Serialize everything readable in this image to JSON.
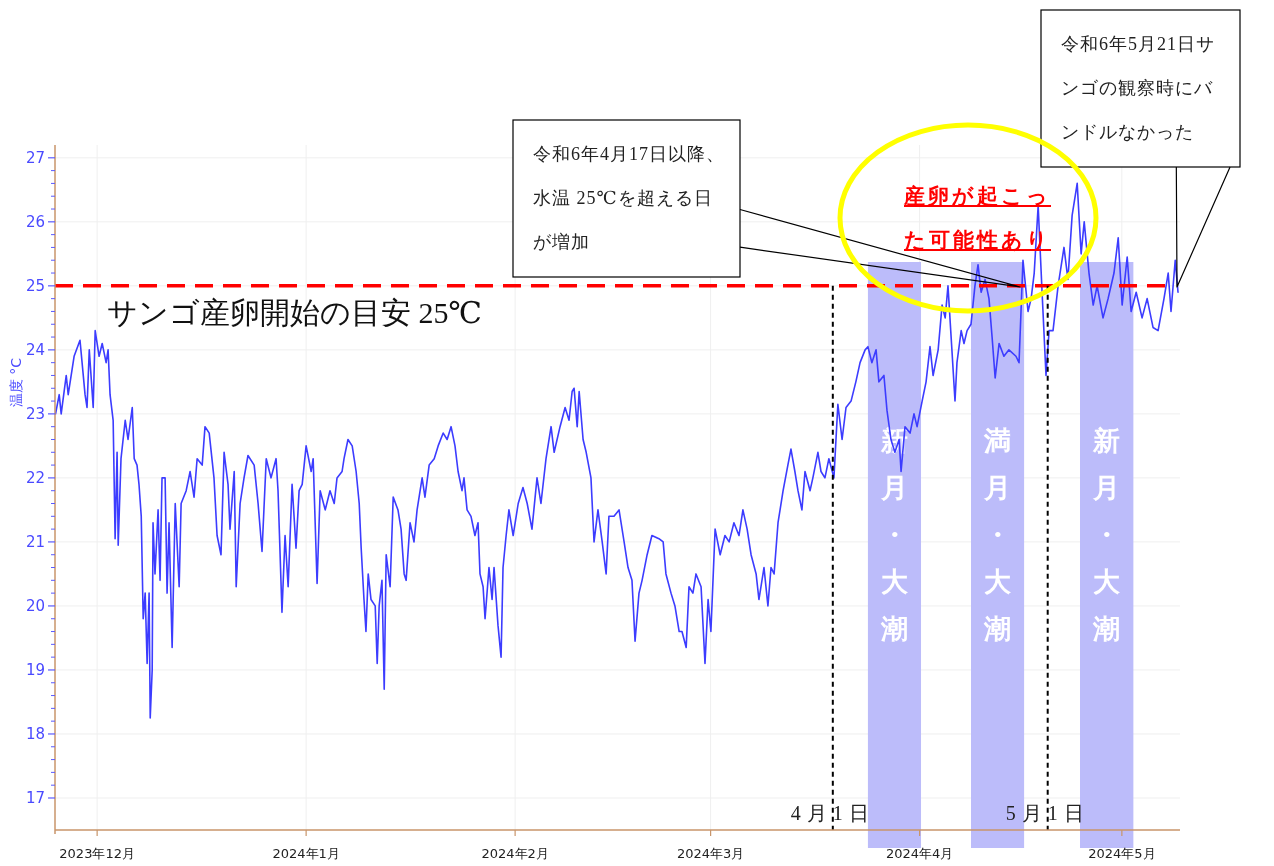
{
  "chart_data": {
    "type": "line",
    "ylabel": "温度 °C",
    "grid": true,
    "xlim": [
      "2023-11-24T18:00",
      "2024-05-09T15:00"
    ],
    "ylim": [
      16.5,
      27.2
    ],
    "xticks": [
      {
        "value": "2023-12-01",
        "label": "2023年12月"
      },
      {
        "value": "2024-01-01",
        "label": "2024年1月"
      },
      {
        "value": "2024-02-01",
        "label": "2024年2月"
      },
      {
        "value": "2024-03-01",
        "label": "2024年3月"
      },
      {
        "value": "2024-04-01",
        "label": "2024年4月"
      },
      {
        "value": "2024-05-01",
        "label": "2024年5月"
      }
    ],
    "yticks": [
      17,
      18,
      19,
      20,
      21,
      22,
      23,
      24,
      25,
      26,
      27
    ],
    "x": [
      "2023-11-24T20:00",
      "2023-11-25T09:00",
      "2023-11-25T16:00",
      "2023-11-26T10:00",
      "2023-11-26T17:00",
      "2023-11-27T14:00",
      "2023-11-28T11:00",
      "2023-11-29T05:00",
      "2023-11-29T12:00",
      "2023-11-29T20:00",
      "2023-11-30T10:00",
      "2023-11-30T17:00",
      "2023-12-01T07:00",
      "2023-12-01T18:00",
      "2023-12-02T08:00",
      "2023-12-02T15:00",
      "2023-12-02T22:00",
      "2023-12-03T09:00",
      "2023-12-03T16:00",
      "2023-12-03T23:00",
      "2023-12-04T03:00",
      "2023-12-04T13:00",
      "2023-12-05T04:00",
      "2023-12-05T14:00",
      "2023-12-06T05:00",
      "2023-12-06T12:00",
      "2023-12-06T22:00",
      "2023-12-07T05:00",
      "2023-12-07T13:00",
      "2023-12-07T20:00",
      "2023-12-08T03:00",
      "2023-12-08T10:00",
      "2023-12-08T17:00",
      "2023-12-08T21:00",
      "2023-12-09T04:00",
      "2023-12-09T07:00",
      "2023-12-09T14:00",
      "2023-12-10T01:00",
      "2023-12-10T08:00",
      "2023-12-10T15:00",
      "2023-12-11T02:00",
      "2023-12-11T09:00",
      "2023-12-11T16:00",
      "2023-12-12T03:00",
      "2023-12-12T14:00",
      "2023-12-13T04:00",
      "2023-12-13T11:00",
      "2023-12-14T05:00",
      "2023-12-14T19:00",
      "2023-12-15T09:00",
      "2023-12-15T20:00",
      "2023-12-16T14:00",
      "2023-12-17T00:00",
      "2023-12-17T15:00",
      "2023-12-18T08:00",
      "2023-12-18T19:00",
      "2023-12-19T09:00",
      "2023-12-19T20:00",
      "2023-12-20T10:00",
      "2023-12-20T17:00",
      "2023-12-21T08:00",
      "2023-12-21T15:00",
      "2023-12-22T05:00",
      "2023-12-22T19:00",
      "2023-12-23T09:00",
      "2023-12-24T07:00",
      "2023-12-24T21:00",
      "2023-12-25T11:00",
      "2023-12-26T02:00",
      "2023-12-26T19:00",
      "2023-12-27T13:00",
      "2023-12-27T20:00",
      "2023-12-28T10:00",
      "2023-12-28T21:00",
      "2023-12-29T08:00",
      "2023-12-29T22:00",
      "2023-12-30T12:00",
      "2023-12-30T23:00",
      "2023-12-31T10:00",
      "2024-01-01T00:00",
      "2024-01-01T18:00",
      "2024-01-02T01:00",
      "2024-01-02T15:00",
      "2024-01-03T02:00",
      "2024-01-03T20:00",
      "2024-01-04T13:00",
      "2024-01-05T04:00",
      "2024-01-05T14:00",
      "2024-01-06T08:00",
      "2024-01-06T15:00",
      "2024-01-07T05:00",
      "2024-01-07T20:00",
      "2024-01-08T10:00",
      "2024-01-08T21:00",
      "2024-01-09T04:00",
      "2024-01-09T14:00",
      "2024-01-09T21:00",
      "2024-01-10T05:00",
      "2024-01-10T15:00",
      "2024-01-11T06:00",
      "2024-01-11T13:00",
      "2024-01-11T20:00",
      "2024-01-12T06:00",
      "2024-01-12T14:00",
      "2024-01-12T21:00",
      "2024-01-13T11:00",
      "2024-01-13T22:00",
      "2024-01-14T15:00",
      "2024-01-15T02:00",
      "2024-01-15T13:00",
      "2024-01-15T20:00",
      "2024-01-16T10:00",
      "2024-01-17T00:00",
      "2024-01-17T11:00",
      "2024-01-18T05:00",
      "2024-01-18T15:00",
      "2024-01-19T06:00",
      "2024-01-20T00:00",
      "2024-01-20T14:00",
      "2024-01-21T08:00",
      "2024-01-21T22:00",
      "2024-01-22T12:00",
      "2024-01-23T02:00",
      "2024-01-23T13:00",
      "2024-01-24T03:00",
      "2024-01-24T10:00",
      "2024-01-24T21:00",
      "2024-01-25T11:00",
      "2024-01-26T01:00",
      "2024-01-26T12:00",
      "2024-01-26T19:00",
      "2024-01-27T06:00",
      "2024-01-27T13:00",
      "2024-01-28T03:00",
      "2024-01-28T14:00",
      "2024-01-28T21:00",
      "2024-01-29T11:00",
      "2024-01-29T22:00",
      "2024-01-30T05:00",
      "2024-01-30T16:00",
      "2024-01-31T02:00",
      "2024-01-31T17:00",
      "2024-02-01T11:00",
      "2024-02-02T04:00",
      "2024-02-02T19:00",
      "2024-02-03T12:00",
      "2024-02-04T06:00",
      "2024-02-04T20:00",
      "2024-02-05T14:00",
      "2024-02-06T08:00",
      "2024-02-06T19:00",
      "2024-02-07T16:00",
      "2024-02-08T10:00",
      "2024-02-09T00:00",
      "2024-02-09T11:00",
      "2024-02-09T18:00",
      "2024-02-10T05:00",
      "2024-02-10T12:00",
      "2024-02-11T02:00",
      "2024-02-11T13:00",
      "2024-02-12T06:00",
      "2024-02-12T17:00",
      "2024-02-13T07:00",
      "2024-02-13T22:00",
      "2024-02-14T12:00",
      "2024-02-14T22:00",
      "2024-02-15T16:00",
      "2024-02-16T10:00",
      "2024-02-17T04:00",
      "2024-02-17T18:00",
      "2024-02-18T08:00",
      "2024-02-18T19:00",
      "2024-02-19T09:00",
      "2024-02-19T20:00",
      "2024-02-20T14:00",
      "2024-02-21T07:00",
      "2024-02-22T08:00",
      "2024-02-22T23:00",
      "2024-02-23T09:00",
      "2024-02-24T03:00",
      "2024-02-24T17:00",
      "2024-02-25T08:00",
      "2024-02-25T18:00",
      "2024-02-26T09:00",
      "2024-02-26T19:00",
      "2024-02-27T09:00",
      "2024-02-27T20:00",
      "2024-02-28T14:00",
      "2024-02-29T04:00",
      "2024-02-29T15:00",
      "2024-03-01T01:00",
      "2024-03-01T16:00",
      "2024-03-02T10:00",
      "2024-03-03T03:00",
      "2024-03-03T18:00",
      "2024-03-04T11:00",
      "2024-03-05T05:00",
      "2024-03-05T19:00",
      "2024-03-06T10:00",
      "2024-03-07T00:00",
      "2024-03-07T18:00",
      "2024-03-08T04:00",
      "2024-03-08T22:00",
      "2024-03-09T12:00",
      "2024-03-09T23:00",
      "2024-03-10T10:00",
      "2024-03-11T00:00",
      "2024-03-11T18:00",
      "2024-03-12T11:00",
      "2024-03-12T22:00",
      "2024-03-13T12:00",
      "2024-03-13T23:00",
      "2024-03-14T13:00",
      "2024-03-15T00:00",
      "2024-03-15T18:00",
      "2024-03-16T04:00",
      "2024-03-16T22:00",
      "2024-03-17T09:00",
      "2024-03-17T23:00",
      "2024-03-18T13:00",
      "2024-03-19T07:00",
      "2024-03-19T21:00",
      "2024-03-20T12:00",
      "2024-03-21T02:00",
      "2024-03-21T20:00",
      "2024-03-22T13:00",
      "2024-03-23T04:00",
      "2024-03-23T22:00",
      "2024-03-24T08:00",
      "2024-03-24T22:00",
      "2024-03-25T13:00",
      "2024-03-25T23:00",
      "2024-03-26T17:00",
      "2024-03-27T04:00",
      "2024-03-27T18:00",
      "2024-03-28T08:00",
      "2024-03-28T23:00",
      "2024-03-29T06:00",
      "2024-03-29T20:00",
      "2024-03-30T14:00",
      "2024-03-31T04:00",
      "2024-03-31T15:00",
      "2024-04-01T09:00",
      "2024-04-01T23:00",
      "2024-04-02T13:00",
      "2024-04-03T00:00",
      "2024-04-03T18:00",
      "2024-04-04T08:00",
      "2024-04-04T19:00",
      "2024-04-05T05:00",
      "2024-04-05T19:00",
      "2024-04-06T06:00",
      "2024-04-06T13:00",
      "2024-04-07T04:00",
      "2024-04-07T14:00",
      "2024-04-08T01:00",
      "2024-04-08T15:00",
      "2024-04-09T05:00",
      "2024-04-09T16:00",
      "2024-04-10T03:00",
      "2024-04-10T17:00",
      "2024-04-11T07:00",
      "2024-04-11T18:00",
      "2024-04-12T05:00",
      "2024-04-12T19:00",
      "2024-04-13T12:00",
      "2024-04-14T06:00",
      "2024-04-15T07:00",
      "2024-04-15T18:00",
      "2024-04-16T08:00",
      "2024-04-17T02:00",
      "2024-04-17T13:00",
      "2024-04-18T00:00",
      "2024-04-18T14:00",
      "2024-04-19T04:00",
      "2024-04-19T18:00",
      "2024-04-20T05:00",
      "2024-04-20T19:00",
      "2024-04-21T13:00",
      "2024-04-22T10:00",
      "2024-04-23T00:00",
      "2024-04-23T15:00",
      "2024-04-24T09:00",
      "2024-04-24T23:00",
      "2024-04-25T10:00",
      "2024-04-26T03:00",
      "2024-04-26T18:00",
      "2024-04-27T08:00",
      "2024-04-28T05:00",
      "2024-04-28T23:00",
      "2024-04-29T20:00",
      "2024-04-30T11:00",
      "2024-05-01T01:00",
      "2024-05-01T19:00",
      "2024-05-02T09:00",
      "2024-05-03T03:00",
      "2024-05-04T00:00",
      "2024-05-04T18:00",
      "2024-05-05T15:00",
      "2024-05-06T09:00",
      "2024-05-07T06:00",
      "2024-05-07T21:00",
      "2024-05-08T07:00",
      "2024-05-08T22:00",
      "2024-05-09T08:00"
    ],
    "series": [
      {
        "color": "#3c3cff",
        "values": [
          23.0,
          23.3,
          23.0,
          23.6,
          23.3,
          23.9,
          24.15,
          23.3,
          23.1,
          24.0,
          23.1,
          24.3,
          23.9,
          24.1,
          23.8,
          24.0,
          23.3,
          22.9,
          21.05,
          22.4,
          20.95,
          22.3,
          22.9,
          22.6,
          23.1,
          22.3,
          22.2,
          21.9,
          21.4,
          19.8,
          20.2,
          19.1,
          20.2,
          18.25,
          19.0,
          21.3,
          20.5,
          21.5,
          20.4,
          22.0,
          22.0,
          20.2,
          21.3,
          19.35,
          21.6,
          20.3,
          21.6,
          21.8,
          22.1,
          21.7,
          22.3,
          22.2,
          22.8,
          22.7,
          22.0,
          21.1,
          20.8,
          22.4,
          21.9,
          21.2,
          22.1,
          20.3,
          21.6,
          22.0,
          22.35,
          22.2,
          21.6,
          20.85,
          22.3,
          22.0,
          22.3,
          21.8,
          19.9,
          21.1,
          20.3,
          21.9,
          20.9,
          21.8,
          21.9,
          22.5,
          22.1,
          22.3,
          20.35,
          21.8,
          21.5,
          21.8,
          21.6,
          22.0,
          22.1,
          22.3,
          22.6,
          22.5,
          22.1,
          21.6,
          20.9,
          20.1,
          19.6,
          20.5,
          20.1,
          20.0,
          19.1,
          20.0,
          20.4,
          18.7,
          20.8,
          20.3,
          21.7,
          21.5,
          21.2,
          20.5,
          20.4,
          21.3,
          21.0,
          21.5,
          22.0,
          21.7,
          22.2,
          22.3,
          22.5,
          22.7,
          22.6,
          22.8,
          22.5,
          22.1,
          21.8,
          22.0,
          21.5,
          21.4,
          21.1,
          21.3,
          20.5,
          20.3,
          19.8,
          20.6,
          20.1,
          20.6,
          19.7,
          19.2,
          20.6,
          21.1,
          21.5,
          21.1,
          21.6,
          21.85,
          21.6,
          21.2,
          22.0,
          21.6,
          22.3,
          22.8,
          22.4,
          22.8,
          23.1,
          22.9,
          23.35,
          23.4,
          22.8,
          23.35,
          22.6,
          22.4,
          22.0,
          21.0,
          21.5,
          21.0,
          20.5,
          21.4,
          21.4,
          21.5,
          21.0,
          20.6,
          20.4,
          19.45,
          20.2,
          20.4,
          20.8,
          21.1,
          21.05,
          21.0,
          20.5,
          20.2,
          20.0,
          19.6,
          19.6,
          19.35,
          20.3,
          20.2,
          20.5,
          20.3,
          19.1,
          20.1,
          19.6,
          21.2,
          20.8,
          21.1,
          21.0,
          21.3,
          21.1,
          21.5,
          21.2,
          20.8,
          20.5,
          20.1,
          20.6,
          20.0,
          20.6,
          20.5,
          21.3,
          21.8,
          22.2,
          22.45,
          22.1,
          21.8,
          21.5,
          22.1,
          21.8,
          22.0,
          22.4,
          22.1,
          22.0,
          22.3,
          22.0,
          23.15,
          22.6,
          23.1,
          23.2,
          23.5,
          23.8,
          24.0,
          24.05,
          23.8,
          24.0,
          23.5,
          23.6,
          23.05,
          22.6,
          22.4,
          22.6,
          22.1,
          22.8,
          22.7,
          23.0,
          22.8,
          23.2,
          23.5,
          24.05,
          23.6,
          24.0,
          24.7,
          24.5,
          25.0,
          24.0,
          23.2,
          23.8,
          24.3,
          24.1,
          24.3,
          24.4,
          25.0,
          25.33,
          24.9,
          25.1,
          24.8,
          24.2,
          23.56,
          24.1,
          23.9,
          24.0,
          23.9,
          23.8,
          25.4,
          24.6,
          24.8,
          25.2,
          26.25,
          24.9,
          23.6,
          24.3,
          24.3,
          25.0,
          25.6,
          25.1,
          26.1,
          26.6,
          25.5,
          26.0,
          25.2,
          24.7,
          25.0,
          24.5,
          24.8,
          25.2,
          25.75,
          24.7,
          25.45,
          24.6,
          24.9,
          24.5,
          24.8,
          24.35,
          24.3,
          24.8,
          25.2,
          24.6,
          25.4,
          24.9
        ]
      }
    ],
    "ref_lines": [
      {
        "axis": "y",
        "value": 25,
        "label": "サンゴ産卵開始の目安 25℃",
        "color": "#ff0000",
        "line_style": "dashed"
      },
      {
        "axis": "x",
        "value": "2024-03-19T03:00",
        "label": "4月1日",
        "color": "#000000",
        "line_style": "dashed"
      },
      {
        "axis": "x",
        "value": "2024-04-20T00:00",
        "label": "5月1日",
        "color": "#000000",
        "line_style": "dashed"
      }
    ],
    "bands": [
      {
        "axis": "x",
        "from": "2024-03-24T08:00",
        "to": "2024-04-01T05:00",
        "label": "新月・大潮",
        "color": "#bcbcfa"
      },
      {
        "axis": "x",
        "from": "2024-04-08T15:00",
        "to": "2024-04-16T12:00",
        "label": "満月・大潮",
        "color": "#bcbcfa"
      },
      {
        "axis": "x",
        "from": "2024-04-24T19:00",
        "to": "2024-05-02T17:00",
        "label": "新月・大潮",
        "color": "#bcbcfa"
      }
    ],
    "annotations": [
      "令和6年4月17日以降、水温 25℃を超える日が増加",
      "令和6年5月21日サンゴの観察時にバンドルなかった",
      "産卵が起こった可能性あり"
    ]
  }
}
